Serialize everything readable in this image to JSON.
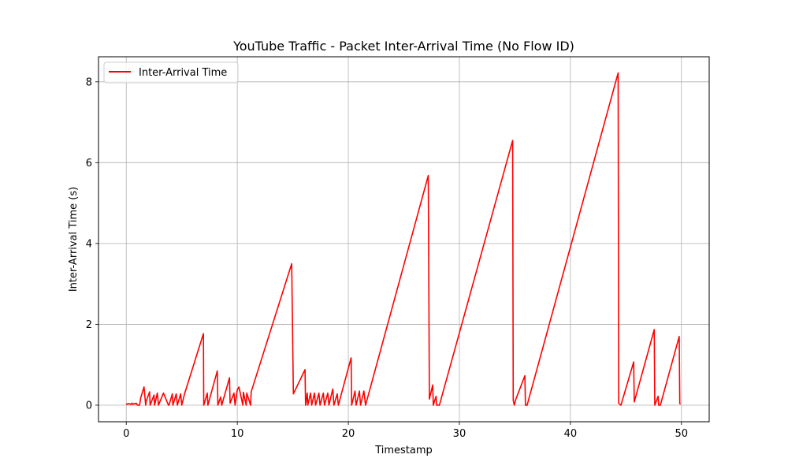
{
  "chart_data": {
    "type": "line",
    "title": "YouTube Traffic - Packet Inter-Arrival Time (No Flow ID)",
    "xlabel": "Timestamp",
    "ylabel": "Inter-Arrival Time (s)",
    "xlim": [
      -2.5,
      52.5
    ],
    "ylim": [
      -0.41,
      8.62
    ],
    "xticks": [
      0,
      10,
      20,
      30,
      40,
      50
    ],
    "yticks": [
      0,
      2,
      4,
      6,
      8
    ],
    "xtick_labels": [
      "0",
      "10",
      "20",
      "30",
      "40",
      "50"
    ],
    "ytick_labels": [
      "0",
      "2",
      "4",
      "6",
      "8"
    ],
    "grid": true,
    "legend_position": "upper-left",
    "series": [
      {
        "name": "Inter-Arrival Time",
        "color": "#ff0000",
        "x": [
          0.0,
          0.1,
          0.2,
          0.4,
          0.5,
          0.6,
          0.7,
          0.8,
          0.9,
          1.0,
          1.2,
          1.3,
          1.6,
          1.75,
          1.8,
          2.1,
          2.15,
          2.5,
          2.55,
          2.8,
          2.9,
          3.35,
          3.8,
          3.85,
          4.15,
          4.2,
          4.5,
          4.6,
          4.9,
          5.0,
          5.25,
          6.95,
          6.98,
          7.3,
          7.35,
          8.2,
          8.25,
          8.5,
          8.6,
          9.3,
          9.35,
          9.7,
          9.8,
          10.0,
          10.15,
          10.5,
          10.55,
          10.8,
          10.85,
          11.2,
          11.25,
          14.9,
          15.05,
          16.1,
          16.15,
          16.3,
          16.35,
          16.6,
          16.7,
          16.95,
          17.05,
          17.35,
          17.45,
          17.75,
          17.85,
          18.15,
          18.25,
          18.6,
          18.7,
          19.0,
          19.1,
          20.25,
          20.3,
          20.6,
          20.7,
          21.0,
          21.1,
          21.4,
          21.55,
          27.2,
          27.3,
          27.6,
          27.65,
          27.9,
          27.95,
          28.2,
          34.8,
          34.85,
          34.95,
          35.05,
          35.9,
          35.95,
          36.1,
          44.3,
          44.35,
          44.55,
          45.7,
          45.75,
          47.55,
          47.6,
          47.9,
          47.95,
          48.1,
          49.8,
          49.85,
          49.9
        ],
        "y": [
          0.04,
          0.02,
          0.04,
          0.02,
          0.05,
          0.02,
          0.04,
          0.03,
          0.05,
          0.0,
          0.0,
          0.18,
          0.45,
          0.0,
          0.1,
          0.33,
          0.0,
          0.25,
          0.0,
          0.3,
          0.0,
          0.3,
          0.0,
          0.0,
          0.28,
          0.0,
          0.28,
          0.0,
          0.28,
          0.0,
          0.28,
          1.77,
          0.0,
          0.3,
          0.0,
          0.85,
          0.0,
          0.2,
          0.0,
          0.68,
          0.05,
          0.3,
          0.0,
          0.38,
          0.45,
          0.0,
          0.32,
          0.0,
          0.3,
          0.0,
          0.33,
          3.5,
          0.28,
          0.88,
          0.0,
          0.3,
          0.0,
          0.3,
          0.0,
          0.3,
          0.0,
          0.3,
          0.0,
          0.3,
          0.0,
          0.3,
          0.0,
          0.4,
          0.0,
          0.28,
          0.0,
          1.17,
          0.0,
          0.35,
          0.0,
          0.35,
          0.0,
          0.35,
          0.0,
          5.68,
          0.15,
          0.5,
          0.0,
          0.22,
          0.0,
          0.0,
          6.55,
          0.12,
          0.0,
          0.12,
          0.73,
          0.0,
          0.0,
          8.22,
          0.05,
          0.0,
          1.07,
          0.08,
          1.87,
          0.0,
          0.22,
          0.0,
          0.0,
          1.7,
          0.05,
          0.02
        ]
      }
    ]
  }
}
